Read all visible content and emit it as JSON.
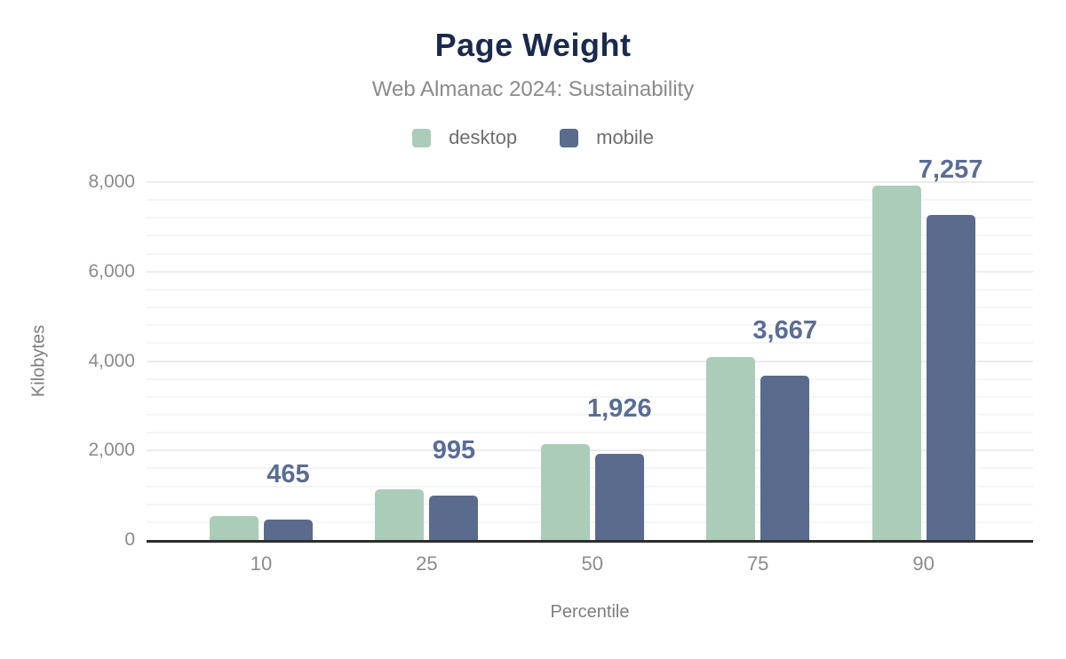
{
  "header": {
    "title": "Page Weight",
    "subtitle": "Web Almanac 2024: Sustainability"
  },
  "chart_data": {
    "type": "bar",
    "title": "Page Weight",
    "subtitle": "Web Almanac 2024: Sustainability",
    "categories": [
      "10",
      "25",
      "50",
      "75",
      "90"
    ],
    "series": [
      {
        "name": "desktop",
        "color": "#abccb9",
        "values": [
          540,
          1140,
          2150,
          4080,
          7920
        ]
      },
      {
        "name": "mobile",
        "color": "#5a6b8e",
        "values": [
          465,
          995,
          1926,
          3667,
          7257
        ],
        "labels": [
          "465",
          "995",
          "1,926",
          "3,667",
          "7,257"
        ]
      }
    ],
    "xlabel": "Percentile",
    "ylabel": "Kilobytes",
    "ylim": [
      0,
      8000
    ],
    "yticks": [
      0,
      2000,
      4000,
      6000,
      8000
    ],
    "ytick_labels": [
      "0",
      "2,000",
      "4,000",
      "6,000",
      "8,000"
    ],
    "minor_grid_step": 400,
    "grid": true,
    "legend_position": "top",
    "data_labels_series": "mobile"
  },
  "colors": {
    "title": "#1a2a4d",
    "subtitle": "#8a8a8a",
    "legend_text": "#6e6e6e",
    "axis_text": "#8b8b8b",
    "data_label": "#5a6d94",
    "axis_line": "#2d2d2d",
    "desktop": "#abccb9",
    "mobile": "#5a6b8e"
  }
}
